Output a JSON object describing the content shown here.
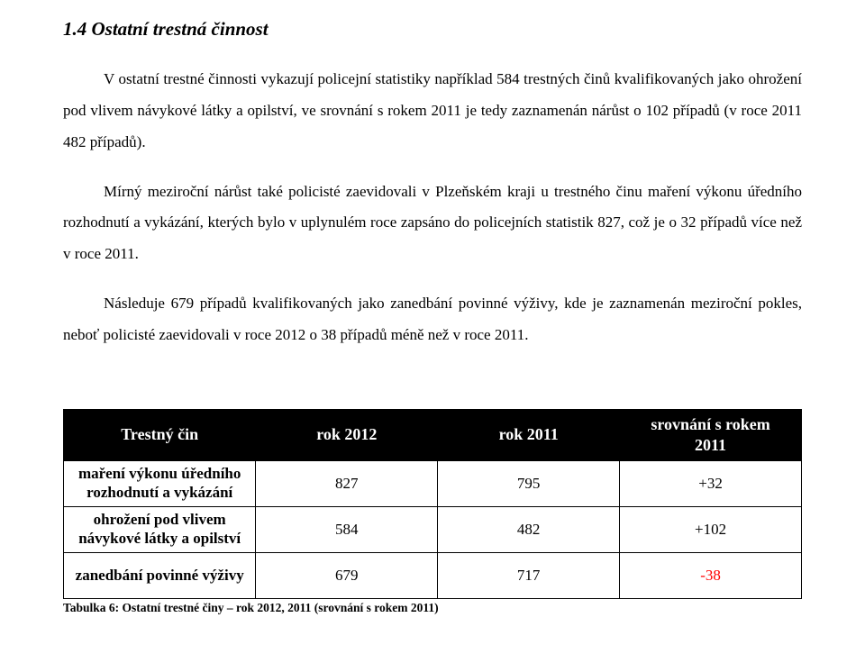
{
  "heading": "1.4  Ostatní trestná činnost",
  "paragraphs": {
    "p1": "V ostatní trestné činnosti vykazují policejní statistiky například 584 trestných činů kvalifikovaných jako ohrožení pod vlivem návykové látky a opilství, ve srovnání s rokem 2011 je tedy zaznamenán nárůst o 102 případů (v roce 2011 482 případů).",
    "p2": "Mírný meziroční nárůst také policisté zaevidovali v Plzeňském kraji u trestného činu maření výkonu úředního rozhodnutí a vykázání, kterých bylo v uplynulém roce zapsáno do policejních statistik 827, což je o 32 případů více než v roce 2011.",
    "p3": "Následuje 679 případů kvalifikovaných jako zanedbání povinné výživy, kde je zaznamenán meziroční pokles, neboť policisté zaevidovali v roce 2012 o 38 případů méně než v roce 2011."
  },
  "table": {
    "headers": {
      "h0": "Trestný čin",
      "h1": "rok 2012",
      "h2": "rok 2011",
      "h3_line1": "srovnání s rokem",
      "h3_line2": "2011"
    },
    "rows": [
      {
        "label_line1": "maření výkonu úředního",
        "label_line2": "rozhodnutí a vykázání",
        "v2012": "827",
        "v2011": "795",
        "diff": "+32",
        "diff_neg": false
      },
      {
        "label_line1": "ohrožení pod vlivem",
        "label_line2": "návykové látky a opilství",
        "v2012": "584",
        "v2011": "482",
        "diff": "+102",
        "diff_neg": false
      },
      {
        "label_line1": "zanedbání povinné výživy",
        "label_line2": "",
        "v2012": "679",
        "v2011": "717",
        "diff": "-38",
        "diff_neg": true
      }
    ],
    "caption": "Tabulka 6: Ostatní trestné činy – rok 2012, 2011 (srovnání s rokem 2011)"
  },
  "colors": {
    "text": "#000000",
    "background": "#ffffff",
    "header_bg": "#000000",
    "header_fg": "#ffffff",
    "negative": "#ff0000"
  }
}
